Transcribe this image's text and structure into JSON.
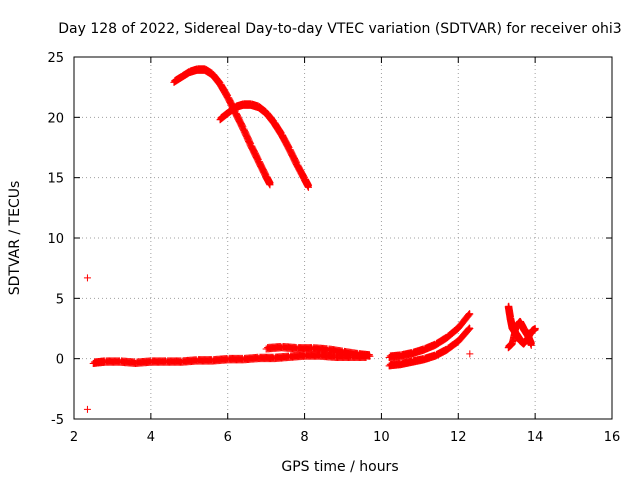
{
  "chart_data": {
    "type": "scatter",
    "title": "Day 128 of 2022, Sidereal Day-to-day VTEC variation (SDTVAR) for receiver ohi3",
    "xlabel": "GPS time / hours",
    "ylabel": "SDTVAR / TECUs",
    "xlim": [
      2,
      16
    ],
    "ylim": [
      -5,
      25
    ],
    "xticks": [
      2,
      4,
      6,
      8,
      10,
      12,
      14,
      16
    ],
    "yticks": [
      -5,
      0,
      5,
      10,
      15,
      20,
      25
    ],
    "grid": true,
    "marker": "+",
    "color": "#ff0000",
    "series": [
      {
        "name": "arc-peak-24",
        "x": [
          4.6,
          4.8,
          5.0,
          5.2,
          5.4,
          5.6,
          5.8,
          6.0,
          6.2,
          6.4,
          6.6,
          6.8,
          7.0,
          7.1
        ],
        "y": [
          22.9,
          23.3,
          23.7,
          23.9,
          23.9,
          23.5,
          22.7,
          21.6,
          20.3,
          19.0,
          17.6,
          16.3,
          15.0,
          14.4
        ]
      },
      {
        "name": "arc-peak-21",
        "x": [
          5.8,
          6.0,
          6.2,
          6.4,
          6.6,
          6.8,
          7.0,
          7.2,
          7.4,
          7.6,
          7.8,
          8.0,
          8.1
        ],
        "y": [
          19.8,
          20.3,
          20.8,
          21.0,
          21.0,
          20.8,
          20.3,
          19.5,
          18.5,
          17.3,
          16.0,
          14.8,
          14.2
        ]
      },
      {
        "name": "baseline",
        "x": [
          2.5,
          2.8,
          3.2,
          3.6,
          4.0,
          4.4,
          4.8,
          5.2,
          5.6,
          6.0,
          6.4,
          6.8,
          7.2,
          7.6,
          8.0,
          8.4,
          8.8,
          9.2,
          9.6
        ],
        "y": [
          -0.4,
          -0.3,
          -0.3,
          -0.4,
          -0.3,
          -0.3,
          -0.3,
          -0.2,
          -0.2,
          -0.1,
          -0.1,
          0.0,
          0.0,
          0.1,
          0.2,
          0.2,
          0.1,
          0.1,
          0.1
        ]
      },
      {
        "name": "raised-band",
        "x": [
          7.0,
          7.4,
          7.8,
          8.2,
          8.6,
          9.0,
          9.4,
          9.7
        ],
        "y": [
          0.8,
          0.9,
          0.8,
          0.8,
          0.7,
          0.5,
          0.3,
          0.2
        ]
      },
      {
        "name": "rising-lower",
        "x": [
          10.2,
          10.5,
          10.8,
          11.1,
          11.4,
          11.7,
          12.0,
          12.3
        ],
        "y": [
          -0.6,
          -0.5,
          -0.3,
          -0.1,
          0.2,
          0.7,
          1.4,
          2.5
        ]
      },
      {
        "name": "rising-upper",
        "x": [
          10.2,
          10.5,
          10.8,
          11.1,
          11.4,
          11.7,
          12.0,
          12.3
        ],
        "y": [
          0.1,
          0.2,
          0.4,
          0.7,
          1.1,
          1.7,
          2.5,
          3.7
        ]
      },
      {
        "name": "cluster-14",
        "x": [
          13.3,
          13.35,
          13.4,
          13.5,
          13.6,
          13.7,
          13.8,
          13.9,
          14.0
        ],
        "y": [
          4.3,
          3.3,
          2.5,
          2.0,
          1.5,
          1.2,
          1.6,
          2.2,
          2.4
        ]
      },
      {
        "name": "cluster-14b",
        "x": [
          13.3,
          13.4,
          13.5,
          13.6,
          13.7,
          13.8,
          13.9
        ],
        "y": [
          0.9,
          1.2,
          2.6,
          3.0,
          2.4,
          1.9,
          1.1
        ]
      },
      {
        "name": "outliers",
        "x": [
          2.35,
          2.35,
          12.3
        ],
        "y": [
          6.7,
          -4.2,
          0.4
        ]
      }
    ]
  }
}
